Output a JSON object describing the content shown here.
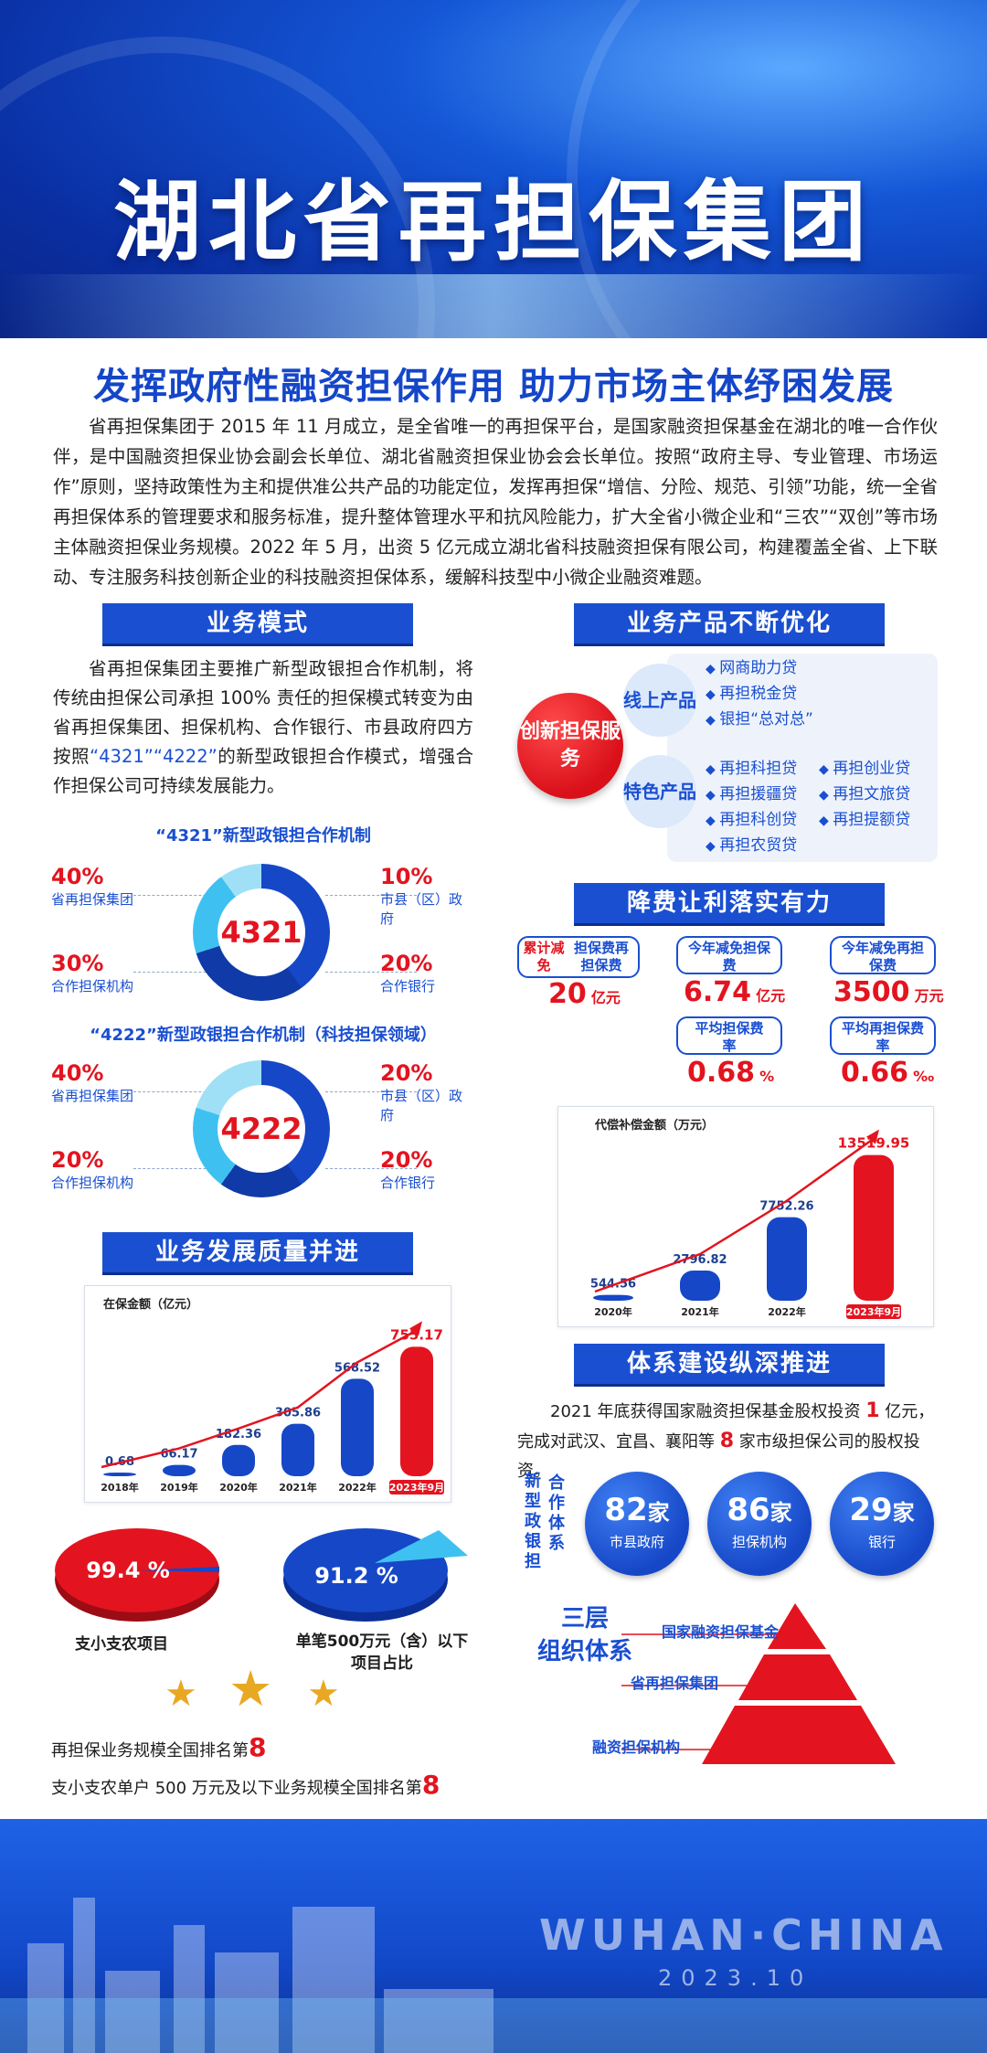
{
  "header": {
    "title": "湖北省再担保集团"
  },
  "subtitle": "发挥政府性融资担保作用  助力市场主体纾困发展",
  "intro": "省再担保集团于 2015 年 11 月成立，是全省唯一的再担保平台，是国家融资担保基金在湖北的唯一合作伙伴，是中国融资担保业协会副会长单位、湖北省融资担保业协会会长单位。按照“政府主导、专业管理、市场运作”原则，坚持政策性为主和提供准公共产品的功能定位，发挥再担保“增信、分险、规范、引领”功能，统一全省再担保体系的管理要求和服务标准，提升整体管理水平和抗风险能力，扩大全省小微企业和“三农”“双创”等市场主体融资担保业务规模。2022 年 5 月，出资 5 亿元成立湖北省科技融资担保有限公司，构建覆盖全省、上下联动、专注服务科技创新企业的科技融资担保体系，缓解科技型中小微企业融资难题。",
  "business_model": {
    "heading": "业务模式",
    "para_pre": "省再担保集团主要推广新型政银担合作机制，将传统由担保公司承担 100% 责任的担保模式转变为由省再担保集团、担保机构、合作银行、市县政府四方按照",
    "para_highlight": "“4321”“4222”",
    "para_post": "的新型政银担合作模式，增强合作担保公司可持续发展能力。",
    "mech1": {
      "title": "“4321”新型政银担合作机制",
      "center": "4321",
      "items": [
        {
          "pct": "40%",
          "label": "省再担保集团"
        },
        {
          "pct": "10%",
          "label": "市县（区）政府"
        },
        {
          "pct": "30%",
          "label": "合作担保机构"
        },
        {
          "pct": "20%",
          "label": "合作银行"
        }
      ]
    },
    "mech2": {
      "title": "“4222”新型政银担合作机制（科技担保领域）",
      "center": "4222",
      "items": [
        {
          "pct": "40%",
          "label": "省再担保集团"
        },
        {
          "pct": "20%",
          "label": "市县（区）政府"
        },
        {
          "pct": "20%",
          "label": "合作担保机构"
        },
        {
          "pct": "20%",
          "label": "合作银行"
        }
      ]
    }
  },
  "quality": {
    "heading": "业务发展质量并进",
    "chart_title": "在保金额（亿元）",
    "pie1": {
      "value": "99.4 %",
      "label": "支小支农项目"
    },
    "pie2": {
      "value": "91.2 %",
      "label": "单笔500万元（含）以下项目占比"
    },
    "rank1_text": "再担保业务规模全国排名第",
    "rank1_num": "8",
    "rank2_text": "支小支农单户 500 万元及以下业务规模全国排名第",
    "rank2_num": "8"
  },
  "products": {
    "heading": "业务产品不断优化",
    "center": "创新担保服务",
    "online_label": "线上产品",
    "online": [
      "网商助力贷",
      "再担税金贷",
      "银担“总对总”"
    ],
    "special_label": "特色产品",
    "special_left": [
      "再担科担贷",
      "再担援疆贷",
      "再担科创贷",
      "再担农贸贷"
    ],
    "special_right": [
      "再担创业贷",
      "再担文旅贷",
      "再担提额贷"
    ]
  },
  "fees": {
    "heading": "降费让利落实有力",
    "box1_left": "累计减免",
    "box1_right": "担保费再担保费",
    "box1_val": "20",
    "box1_unit": "亿元",
    "box2": "今年减免担保费",
    "box2_val": "6.74",
    "box2_unit": "亿元",
    "box3": "今年减免再担保费",
    "box3_val": "3500",
    "box3_unit": "万元",
    "box4": "平均担保费率",
    "box4_val": "0.68",
    "box4_unit": "%",
    "box5": "平均再担保费率",
    "box5_val": "0.66",
    "box5_unit": "‰",
    "chart_title": "代偿补偿金额（万元）"
  },
  "system": {
    "heading": "体系建设纵深推进",
    "text_pre": "2021 年底获得国家融资担保基金股权投资 ",
    "text_num1": "1",
    "text_mid": " 亿元，完成对武汉、宜昌、襄阳等 ",
    "text_num2": "8",
    "text_post": " 家市级担保公司的股权投资。",
    "vert_label_a": "新型政银担",
    "vert_label_b": "合作体系",
    "stats": [
      {
        "num": "82",
        "unit": "家",
        "label": "市县政府"
      },
      {
        "num": "86",
        "unit": "家",
        "label": "担保机构"
      },
      {
        "num": "29",
        "unit": "家",
        "label": "银行"
      }
    ],
    "tier_title_a": "三层",
    "tier_title_b": "组织体系",
    "tiers": [
      "国家融资担保基金",
      "省再担保集团",
      "融资担保机构"
    ]
  },
  "footer": {
    "line1": "WUHAN·CHINA",
    "line2": "2023.10"
  },
  "chart_data": [
    {
      "type": "bar",
      "title": "在保金额（亿元）",
      "categories": [
        "2018年",
        "2019年",
        "2020年",
        "2021年",
        "2022年",
        "2023年9月"
      ],
      "values": [
        0.68,
        66.17,
        182.36,
        305.86,
        568.52,
        755.17
      ],
      "ylim": [
        0,
        800
      ]
    },
    {
      "type": "bar",
      "title": "代偿补偿金额（万元）",
      "categories": [
        "2020年",
        "2021年",
        "2022年",
        "2023年9月"
      ],
      "values": [
        544.56,
        2796.82,
        7752.26,
        13519.95
      ],
      "ylim": [
        0,
        14000
      ]
    },
    {
      "type": "pie",
      "values": [
        99.4,
        0.6
      ],
      "label": "支小支农项目"
    },
    {
      "type": "pie",
      "values": [
        91.2,
        8.8
      ],
      "label": "单笔500万元（含）以下项目占比"
    }
  ],
  "colors": {
    "brand_blue": "#1a4fd1",
    "accent_red": "#e3141f",
    "light_blue": "#3ec1f0"
  }
}
